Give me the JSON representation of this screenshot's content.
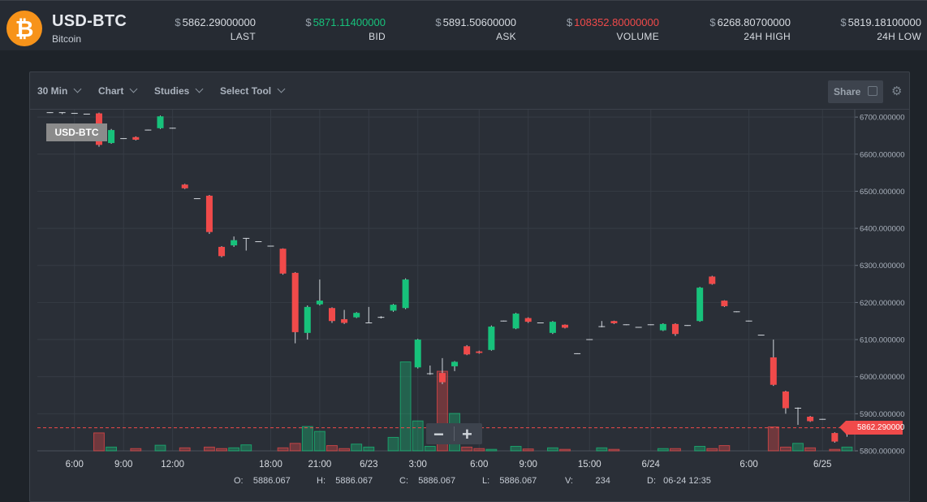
{
  "header": {
    "pair": "USD-BTC",
    "coin_name": "Bitcoin",
    "coin_icon": "bitcoin-icon",
    "currency_symbol": "$",
    "stats": [
      {
        "key": "last",
        "value": "5862.29000000",
        "label": "LAST",
        "color": "#d7dbe1"
      },
      {
        "key": "bid",
        "value": "5871.11400000",
        "label": "BID",
        "color": "#17c27b"
      },
      {
        "key": "ask",
        "value": "5891.50600000",
        "label": "ASK",
        "color": "#d7dbe1"
      },
      {
        "key": "volume",
        "value": "108352.80000000",
        "label": "VOLUME",
        "color": "#f04a4a"
      },
      {
        "key": "high",
        "value": "6268.80700000",
        "label": "24H HIGH",
        "color": "#d7dbe1"
      },
      {
        "key": "low",
        "value": "5819.18100000",
        "label": "24H LOW",
        "color": "#d7dbe1"
      }
    ]
  },
  "toolbar": {
    "interval": "30 Min",
    "chart": "Chart",
    "studies": "Studies",
    "select_tool": "Select Tool",
    "share": "Share"
  },
  "chart_legend": "USD-BTC",
  "zoom": {
    "minus": "−",
    "plus": "+"
  },
  "last_price_tag": "5862.290000",
  "ohlc": {
    "o_label": "O:",
    "o": "5886.067",
    "h_label": "H:",
    "h": "5886.067",
    "c_label": "C:",
    "c": "5886.067",
    "l_label": "L:",
    "l": "5886.067",
    "v_label": "V:",
    "v": "234",
    "d_label": "D:",
    "d": "06-24 12:35"
  },
  "colors": {
    "up": "#17c27b",
    "down": "#f04a4a",
    "grid": "#363c45",
    "accent": "#f7931a"
  },
  "chart_data": {
    "type": "candlestick",
    "title": "USD-BTC",
    "y_axis": {
      "range": [
        5800,
        6720
      ],
      "ticks": [
        "6700.000000",
        "6600.000000",
        "6500.000000",
        "6400.000000",
        "6300.000000",
        "6200.000000",
        "6100.000000",
        "6000.000000",
        "5900.000000",
        "5800.000000"
      ]
    },
    "x_axis": {
      "ticks": [
        "6:00",
        "9:00",
        "12:00",
        "18:00",
        "21:00",
        "6/23",
        "3:00",
        "6:00",
        "9:00",
        "15:00",
        "6/24",
        "6:00",
        "6/25"
      ]
    },
    "last_price": 5862.29,
    "candles": [
      {
        "o": 6712,
        "c": 6712,
        "h": 6713,
        "l": 6711,
        "v": 0
      },
      {
        "o": 6712,
        "c": 6710,
        "h": 6713,
        "l": 6708,
        "v": 0
      },
      {
        "o": 6710,
        "c": 6710,
        "h": 6711,
        "l": 6709,
        "v": 0
      },
      {
        "o": 6708,
        "c": 6708,
        "h": 6709,
        "l": 6707,
        "v": 0
      },
      {
        "o": 6710,
        "c": 6625,
        "h": 6712,
        "l": 6620,
        "v": 48
      },
      {
        "o": 6630,
        "c": 6665,
        "h": 6668,
        "l": 6628,
        "v": 10
      },
      {
        "o": 6642,
        "c": 6642,
        "h": 6643,
        "l": 6641,
        "v": 0
      },
      {
        "o": 6646,
        "c": 6639,
        "h": 6648,
        "l": 6637,
        "v": 6
      },
      {
        "o": 6665,
        "c": 6665,
        "h": 6666,
        "l": 6664,
        "v": 0
      },
      {
        "o": 6670,
        "c": 6702,
        "h": 6704,
        "l": 6668,
        "v": 15
      },
      {
        "o": 6670,
        "c": 6670,
        "h": 6671,
        "l": 6669,
        "v": 0
      },
      {
        "o": 6518,
        "c": 6508,
        "h": 6520,
        "l": 6506,
        "v": 8
      },
      {
        "o": 6480,
        "c": 6480,
        "h": 6481,
        "l": 6479,
        "v": 0
      },
      {
        "o": 6488,
        "c": 6390,
        "h": 6490,
        "l": 6385,
        "v": 10
      },
      {
        "o": 6350,
        "c": 6325,
        "h": 6352,
        "l": 6322,
        "v": 6
      },
      {
        "o": 6354,
        "c": 6368,
        "h": 6378,
        "l": 6350,
        "v": 8
      },
      {
        "o": 6373,
        "c": 6373,
        "h": 6374,
        "l": 6340,
        "v": 16
      },
      {
        "o": 6364,
        "c": 6364,
        "h": 6365,
        "l": 6363,
        "v": 0
      },
      {
        "o": 6352,
        "c": 6352,
        "h": 6353,
        "l": 6351,
        "v": 0
      },
      {
        "o": 6345,
        "c": 6278,
        "h": 6346,
        "l": 6275,
        "v": 8
      },
      {
        "o": 6280,
        "c": 6120,
        "h": 6282,
        "l": 6090,
        "v": 20
      },
      {
        "o": 6118,
        "c": 6188,
        "h": 6192,
        "l": 6100,
        "v": 65
      },
      {
        "o": 6195,
        "c": 6205,
        "h": 6262,
        "l": 6192,
        "v": 52
      },
      {
        "o": 6185,
        "c": 6150,
        "h": 6187,
        "l": 6145,
        "v": 14
      },
      {
        "o": 6155,
        "c": 6145,
        "h": 6180,
        "l": 6142,
        "v": 6
      },
      {
        "o": 6160,
        "c": 6172,
        "h": 6174,
        "l": 6158,
        "v": 18
      },
      {
        "o": 6145,
        "c": 6145,
        "h": 6188,
        "l": 6144,
        "v": 10
      },
      {
        "o": 6160,
        "c": 6160,
        "h": 6163,
        "l": 6157,
        "v": 0
      },
      {
        "o": 6178,
        "c": 6194,
        "h": 6196,
        "l": 6175,
        "v": 36
      },
      {
        "o": 6185,
        "c": 6262,
        "h": 6265,
        "l": 6182,
        "v": 238
      },
      {
        "o": 6025,
        "c": 6100,
        "h": 6102,
        "l": 6022,
        "v": 80
      },
      {
        "o": 6008,
        "c": 6008,
        "h": 6030,
        "l": 6005,
        "v": 12
      },
      {
        "o": 6010,
        "c": 5985,
        "h": 6050,
        "l": 5980,
        "v": 213
      },
      {
        "o": 6028,
        "c": 6040,
        "h": 6042,
        "l": 6015,
        "v": 100
      },
      {
        "o": 6082,
        "c": 6060,
        "h": 6085,
        "l": 6058,
        "v": 10
      },
      {
        "o": 6068,
        "c": 6064,
        "h": 6070,
        "l": 6062,
        "v": 6
      },
      {
        "o": 6072,
        "c": 6135,
        "h": 6138,
        "l": 6070,
        "v": 4
      },
      {
        "o": 6150,
        "c": 6150,
        "h": 6151,
        "l": 6149,
        "v": 0
      },
      {
        "o": 6130,
        "c": 6170,
        "h": 6172,
        "l": 6128,
        "v": 12
      },
      {
        "o": 6158,
        "c": 6148,
        "h": 6160,
        "l": 6145,
        "v": 5
      },
      {
        "o": 6145,
        "c": 6145,
        "h": 6146,
        "l": 6144,
        "v": 0
      },
      {
        "o": 6118,
        "c": 6148,
        "h": 6150,
        "l": 6115,
        "v": 8
      },
      {
        "o": 6140,
        "c": 6132,
        "h": 6141,
        "l": 6130,
        "v": 4
      },
      {
        "o": 6062,
        "c": 6062,
        "h": 6063,
        "l": 6061,
        "v": 0
      },
      {
        "o": 6100,
        "c": 6100,
        "h": 6101,
        "l": 6099,
        "v": 0
      },
      {
        "o": 6135,
        "c": 6135,
        "h": 6150,
        "l": 6133,
        "v": 8
      },
      {
        "o": 6150,
        "c": 6144,
        "h": 6151,
        "l": 6142,
        "v": 4
      },
      {
        "o": 6140,
        "c": 6140,
        "h": 6141,
        "l": 6139,
        "v": 0
      },
      {
        "o": 6133,
        "c": 6133,
        "h": 6134,
        "l": 6132,
        "v": 0
      },
      {
        "o": 6140,
        "c": 6140,
        "h": 6141,
        "l": 6139,
        "v": 0
      },
      {
        "o": 6125,
        "c": 6142,
        "h": 6144,
        "l": 6123,
        "v": 6
      },
      {
        "o": 6142,
        "c": 6115,
        "h": 6144,
        "l": 6110,
        "v": 6
      },
      {
        "o": 6138,
        "c": 6138,
        "h": 6139,
        "l": 6137,
        "v": 0
      },
      {
        "o": 6150,
        "c": 6240,
        "h": 6242,
        "l": 6148,
        "v": 12
      },
      {
        "o": 6270,
        "c": 6250,
        "h": 6272,
        "l": 6248,
        "v": 6
      },
      {
        "o": 6205,
        "c": 6190,
        "h": 6206,
        "l": 6188,
        "v": 14
      },
      {
        "o": 6175,
        "c": 6175,
        "h": 6176,
        "l": 6174,
        "v": 0
      },
      {
        "o": 6150,
        "c": 6150,
        "h": 6151,
        "l": 6149,
        "v": 0
      },
      {
        "o": 6112,
        "c": 6112,
        "h": 6113,
        "l": 6111,
        "v": 0
      },
      {
        "o": 6052,
        "c": 5978,
        "h": 6100,
        "l": 5975,
        "v": 64
      },
      {
        "o": 5960,
        "c": 5915,
        "h": 5962,
        "l": 5900,
        "v": 10
      },
      {
        "o": 5912,
        "c": 5915,
        "h": 5917,
        "l": 5870,
        "v": 20
      },
      {
        "o": 5892,
        "c": 5880,
        "h": 5894,
        "l": 5878,
        "v": 8
      },
      {
        "o": 5885,
        "c": 5885,
        "h": 5886,
        "l": 5884,
        "v": 0
      },
      {
        "o": 5848,
        "c": 5825,
        "h": 5850,
        "l": 5822,
        "v": 4
      },
      {
        "o": 5860,
        "c": 5862,
        "h": 5864,
        "l": 5838,
        "v": 10
      }
    ]
  }
}
